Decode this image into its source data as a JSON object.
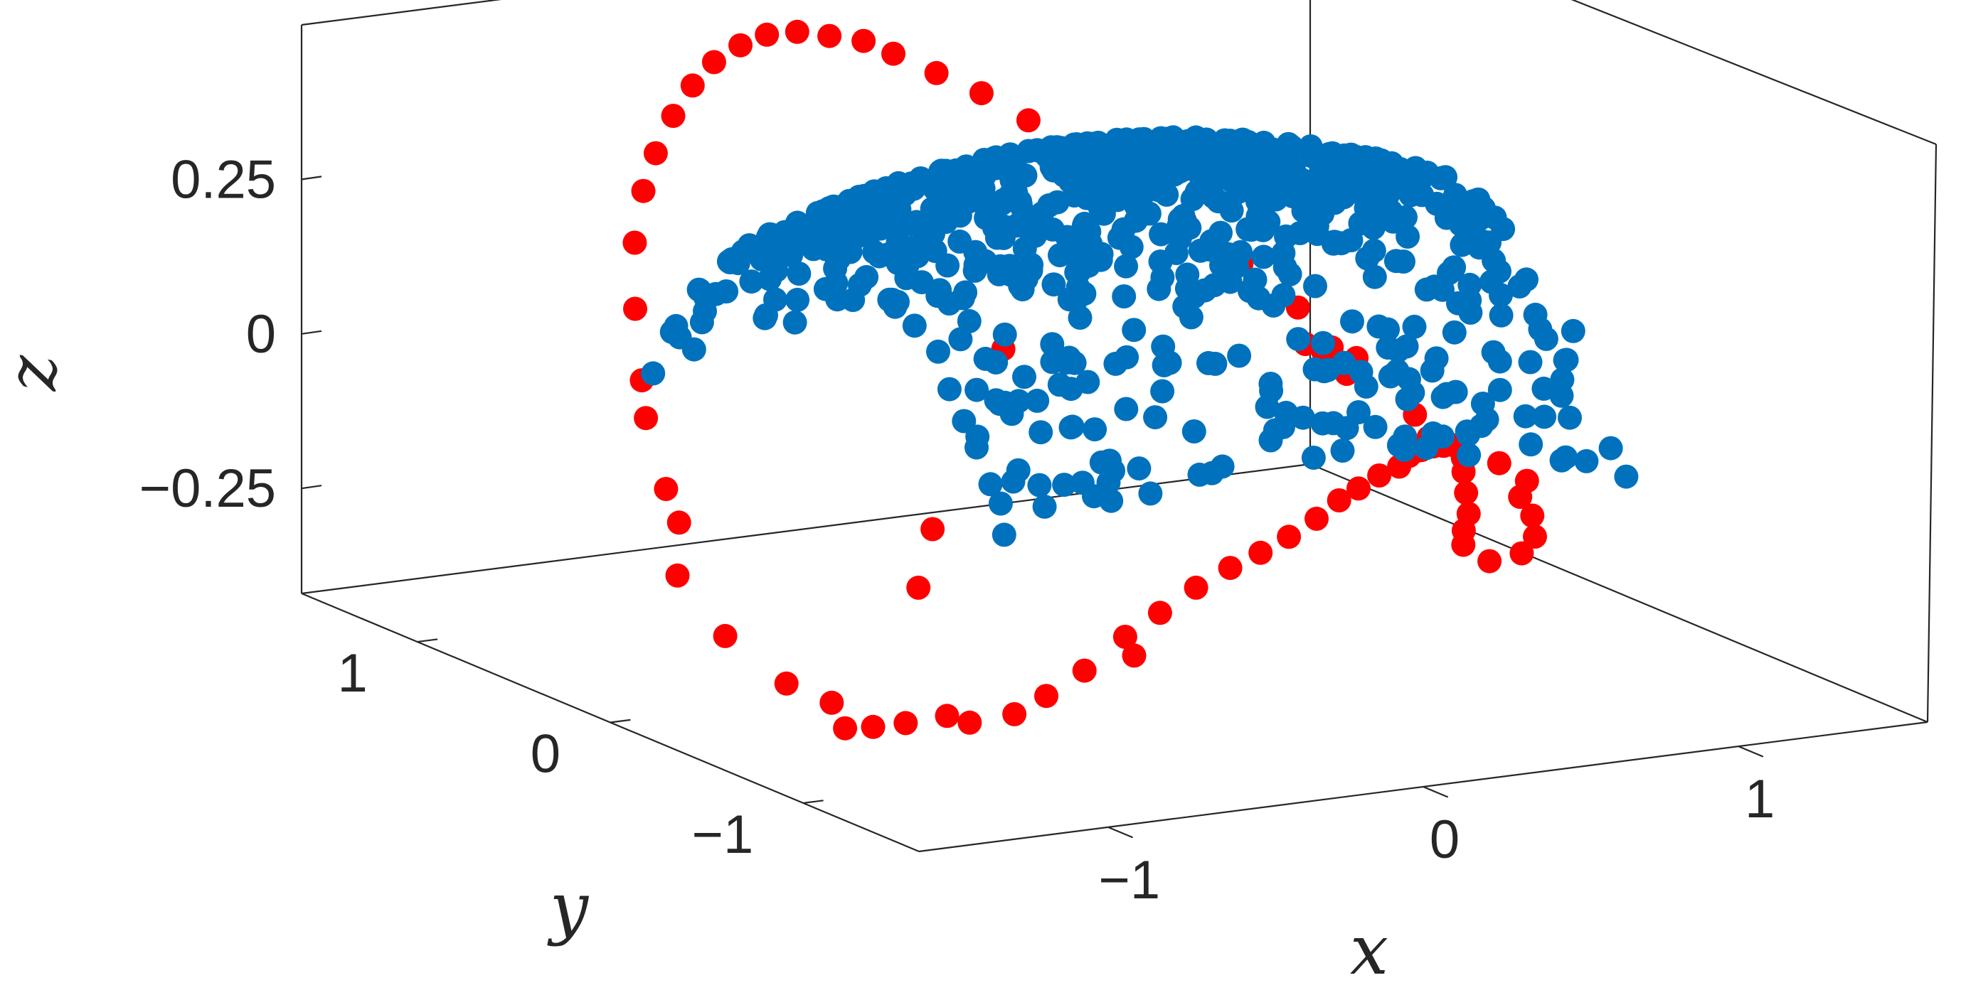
{
  "chart_data": {
    "type": "scatter",
    "projection": "3d",
    "title": "",
    "xlabel": "x",
    "ylabel": "y",
    "zlabel": "z",
    "xlim": [
      -1.6,
      1.6
    ],
    "ylim": [
      -1.6,
      1.6
    ],
    "zlim": [
      -0.42,
      0.5
    ],
    "xticks": [
      -1,
      0,
      1
    ],
    "xtick_labels": [
      "−1",
      "0",
      "1"
    ],
    "yticks": [
      1,
      0,
      -1
    ],
    "ytick_labels": [
      "1",
      "0",
      "−1"
    ],
    "zticks": [
      0.25,
      0,
      -0.25
    ],
    "ztick_labels": [
      "0.25",
      "0",
      "−0.25"
    ],
    "grid": false,
    "legend": "none",
    "colors": {
      "series_outer": "#ff0000",
      "series_inner": "#0072bd",
      "axes": "#262626"
    },
    "series": [
      {
        "color": "#ff0000",
        "description_points": "outer boundary points (red)",
        "points": [
          [
            -1.09,
            -0.08,
            -0.38
          ],
          [
            -1.07,
            0.27,
            -0.35
          ],
          [
            -0.97,
            0.74,
            -0.18
          ],
          [
            -0.93,
            0.91,
            -0.09
          ],
          [
            -0.9,
            0.98,
            -0.04
          ],
          [
            -0.86,
            1.08,
            0.06
          ],
          [
            -0.8,
            1.18,
            0.15
          ],
          [
            -0.73,
            1.25,
            0.22
          ],
          [
            -0.66,
            1.3,
            0.27
          ],
          [
            -0.58,
            1.34,
            0.32
          ],
          [
            -0.5,
            1.37,
            0.36
          ],
          [
            -0.42,
            1.39,
            0.39
          ],
          [
            -0.33,
            1.4,
            0.41
          ],
          [
            -0.24,
            1.41,
            0.42
          ],
          [
            -0.15,
            1.4,
            0.42
          ],
          [
            -0.06,
            1.38,
            0.41
          ],
          [
            0.03,
            1.35,
            0.4
          ],
          [
            -1.1,
            -0.4,
            -0.41
          ],
          [
            -1.03,
            -0.6,
            -0.38
          ],
          [
            -0.98,
            -0.85,
            -0.35
          ],
          [
            -0.93,
            -1.0,
            -0.32
          ],
          [
            -0.89,
            -1.1,
            -0.28
          ],
          [
            -0.83,
            -1.2,
            -0.23
          ],
          [
            -0.75,
            -1.28,
            -0.17
          ],
          [
            -0.67,
            -1.33,
            -0.13
          ],
          [
            -0.58,
            -1.37,
            -0.09
          ],
          [
            -0.49,
            -1.4,
            -0.06
          ],
          [
            -0.4,
            -1.41,
            -0.04
          ],
          [
            -0.31,
            -1.41,
            -0.02
          ],
          [
            -0.21,
            -1.39,
            0.0
          ],
          [
            -0.12,
            -1.36,
            0.02
          ],
          [
            -0.04,
            -1.33,
            0.03
          ],
          [
            0.05,
            -1.29,
            0.04
          ],
          [
            0.15,
            -1.23,
            0.04
          ],
          [
            0.25,
            -1.16,
            0.05
          ],
          [
            0.35,
            -1.08,
            0.04
          ],
          [
            0.45,
            -0.97,
            0.02
          ],
          [
            0.55,
            -0.86,
            0.0
          ],
          [
            0.65,
            -0.73,
            -0.03
          ],
          [
            0.75,
            -0.58,
            -0.07
          ],
          [
            0.85,
            -0.42,
            -0.12
          ],
          [
            0.95,
            -0.27,
            -0.18
          ],
          [
            1.05,
            -0.12,
            -0.24
          ],
          [
            1.12,
            0.02,
            -0.29
          ],
          [
            1.18,
            0.12,
            -0.33
          ],
          [
            0.1,
            1.31,
            0.38
          ],
          [
            0.2,
            1.25,
            0.35
          ],
          [
            0.3,
            1.18,
            0.32
          ],
          [
            0.4,
            1.1,
            0.28
          ],
          [
            0.5,
            1.0,
            0.24
          ],
          [
            0.6,
            0.9,
            0.19
          ],
          [
            0.7,
            0.78,
            0.14
          ],
          [
            0.8,
            0.65,
            0.08
          ],
          [
            0.9,
            0.52,
            0.02
          ],
          [
            1.0,
            0.38,
            -0.05
          ],
          [
            1.1,
            0.24,
            -0.13
          ],
          [
            1.18,
            0.3,
            -0.18
          ],
          [
            -1.05,
            0.55,
            -0.29
          ],
          [
            -0.99,
            0.64,
            -0.22
          ],
          [
            -1.02,
            -0.2,
            -0.4
          ],
          [
            -0.7,
            -0.2,
            -0.14
          ],
          [
            -0.2,
            0.25,
            0.06
          ],
          [
            0.6,
            -0.1,
            0.05
          ],
          [
            0.75,
            0.1,
            0.02
          ],
          [
            -0.5,
            0.2,
            -0.3
          ],
          [
            0.95,
            -0.55,
            -0.15
          ],
          [
            1.05,
            -0.45,
            -0.2
          ],
          [
            1.15,
            -0.3,
            -0.26
          ],
          [
            1.2,
            -0.15,
            -0.31
          ],
          [
            1.22,
            0.05,
            -0.35
          ],
          [
            0.85,
            0.4,
            -0.02
          ],
          [
            0.92,
            0.3,
            -0.06
          ],
          [
            0.88,
            -0.7,
            -0.1
          ],
          [
            0.7,
            -0.85,
            -0.04
          ],
          [
            0.5,
            -1.0,
            0.0
          ],
          [
            -1.06,
            -0.48,
            -0.4
          ],
          [
            -0.96,
            -0.7,
            -0.36
          ],
          [
            0.2,
            -1.2,
            0.05
          ],
          [
            0.3,
            -1.1,
            0.04
          ],
          [
            -0.55,
            -1.0,
            -0.25
          ]
        ]
      },
      {
        "color": "#0072bd",
        "description_points": "inner sampled points (blue), curved sheet",
        "generator": "sheet",
        "x_range": [
          -0.95,
          1.05
        ],
        "y_range": [
          -1.0,
          1.0
        ],
        "z_formula": "0.4 - 0.1*x^2 - 0.37*y^2",
        "n_points": 760
      }
    ]
  }
}
